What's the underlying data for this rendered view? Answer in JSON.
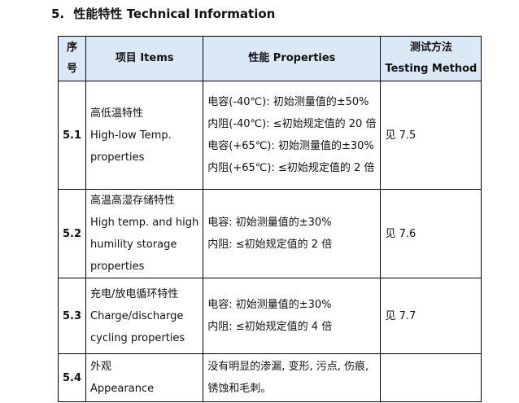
{
  "section": {
    "number": "5.",
    "title": "性能特性 Technical Information"
  },
  "table": {
    "headers": {
      "no": "序号",
      "item": "项目 Items",
      "properties": "性能 Properties",
      "method_cn": "测试方法",
      "method_en": "Testing Method"
    },
    "rows": [
      {
        "no": "5.1",
        "item_lines": [
          "高低温特性",
          "High-low Temp.",
          "properties"
        ],
        "prop_lines": [
          "电容(-40℃): 初始测量值的±50%",
          "内阻(-40℃): ≤初始规定值的 20 倍",
          "电容(+65℃): 初始测量值的±30%",
          "内阻(+65℃): ≤初始规定值的 2 倍"
        ],
        "method": "见 7.5"
      },
      {
        "no": "5.2",
        "item_lines": [
          "高温高湿存储特性",
          "High temp. and high",
          "humility storage",
          "properties"
        ],
        "prop_lines": [
          "电容: 初始测量值的±30%",
          "内阻: ≤初始规定值的 2 倍"
        ],
        "method": "见 7.6"
      },
      {
        "no": "5.3",
        "item_lines": [
          "充电/放电循环特性",
          "Charge/discharge",
          "cycling properties"
        ],
        "prop_lines": [
          "电容: 初始测量值的±30%",
          "内阻: ≤初始规定值的 4 倍"
        ],
        "method": "见 7.7"
      },
      {
        "no": "5.4",
        "item_lines": [
          "外观",
          "Appearance"
        ],
        "prop_lines": [
          "没有明显的渗漏, 变形, 污点, 伤痕,",
          "锈蚀和毛刺。"
        ],
        "method": ""
      }
    ]
  }
}
